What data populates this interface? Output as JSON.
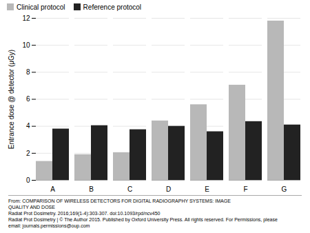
{
  "chart_data": {
    "type": "bar",
    "categories": [
      "A",
      "B",
      "C",
      "D",
      "E",
      "F",
      "G"
    ],
    "series": [
      {
        "name": "Clinical protocol",
        "color": "#b8b8b8",
        "values": [
          1.4,
          1.9,
          2.05,
          4.4,
          5.6,
          7.05,
          11.8
        ]
      },
      {
        "name": "Reference protocol",
        "color": "#222222",
        "values": [
          3.8,
          4.05,
          3.75,
          4.0,
          3.6,
          4.35,
          4.1
        ]
      }
    ],
    "ylabel": "Entrance dose @ detector (μGy)",
    "ylim": [
      0,
      12
    ],
    "yticks": [
      0,
      2,
      4,
      6,
      8,
      10,
      12
    ],
    "grid": true,
    "legend": "upper left",
    "annotations": [
      "From: COMPARISON OF WIRELESS DETECTORS FOR DIGITAL RADIOGRAPHY SYSTEMS: IMAGE",
      "QUALITY AND DOSE",
      "Radiat Prot Dosimetry. 2016;169(1-4):303-307. doi:10.1093/rpd/ncv450",
      "Radiat Prot Dosimetry | © The Author 2015. Published by Oxford University Press. All rights reserved. For Permissions, please",
      "email: journals.permissions@oup.com"
    ]
  }
}
